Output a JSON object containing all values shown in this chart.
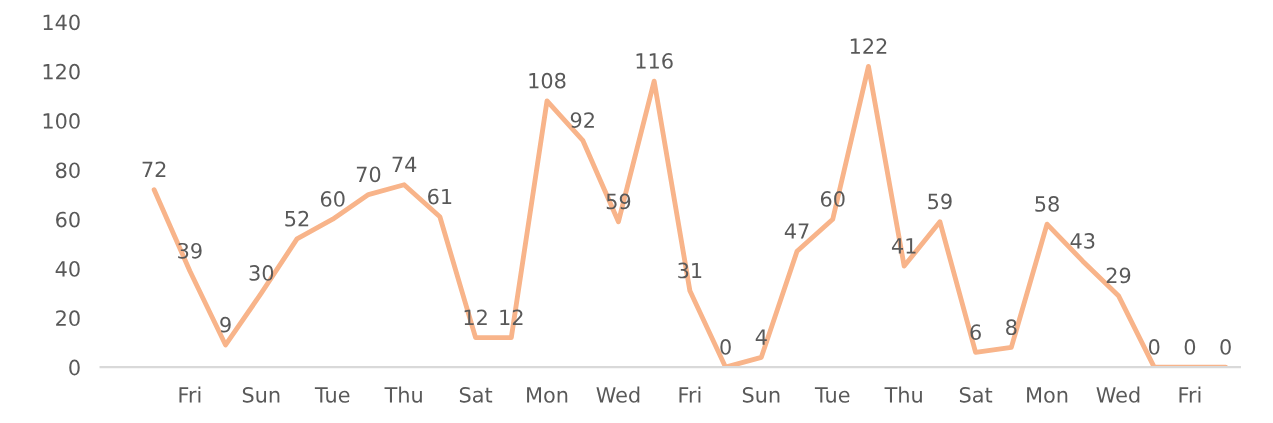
{
  "chart_data": {
    "type": "line",
    "categories": [
      null,
      "Fri",
      null,
      "Sun",
      null,
      "Tue",
      null,
      "Thu",
      null,
      "Sat",
      null,
      "Mon",
      null,
      "Wed",
      null,
      "Fri",
      null,
      "Sun",
      null,
      "Tue",
      null,
      "Thu",
      null,
      "Sat",
      null,
      "Mon",
      null,
      "Wed",
      null,
      "Fri",
      null
    ],
    "series": [
      {
        "color": "#f8b48a",
        "values": [
          72,
          39,
          9,
          30,
          52,
          60,
          70,
          74,
          61,
          12,
          12,
          108,
          92,
          59,
          116,
          31,
          0,
          4,
          47,
          60,
          122,
          41,
          59,
          6,
          8,
          58,
          43,
          29,
          0,
          0,
          0
        ]
      }
    ],
    "ylim": [
      0,
      140
    ],
    "yticks": [
      0,
      20,
      40,
      60,
      80,
      100,
      120,
      140
    ],
    "data_labels": true,
    "grid": false,
    "legend": false,
    "marker": "none",
    "line_style": "solid"
  }
}
